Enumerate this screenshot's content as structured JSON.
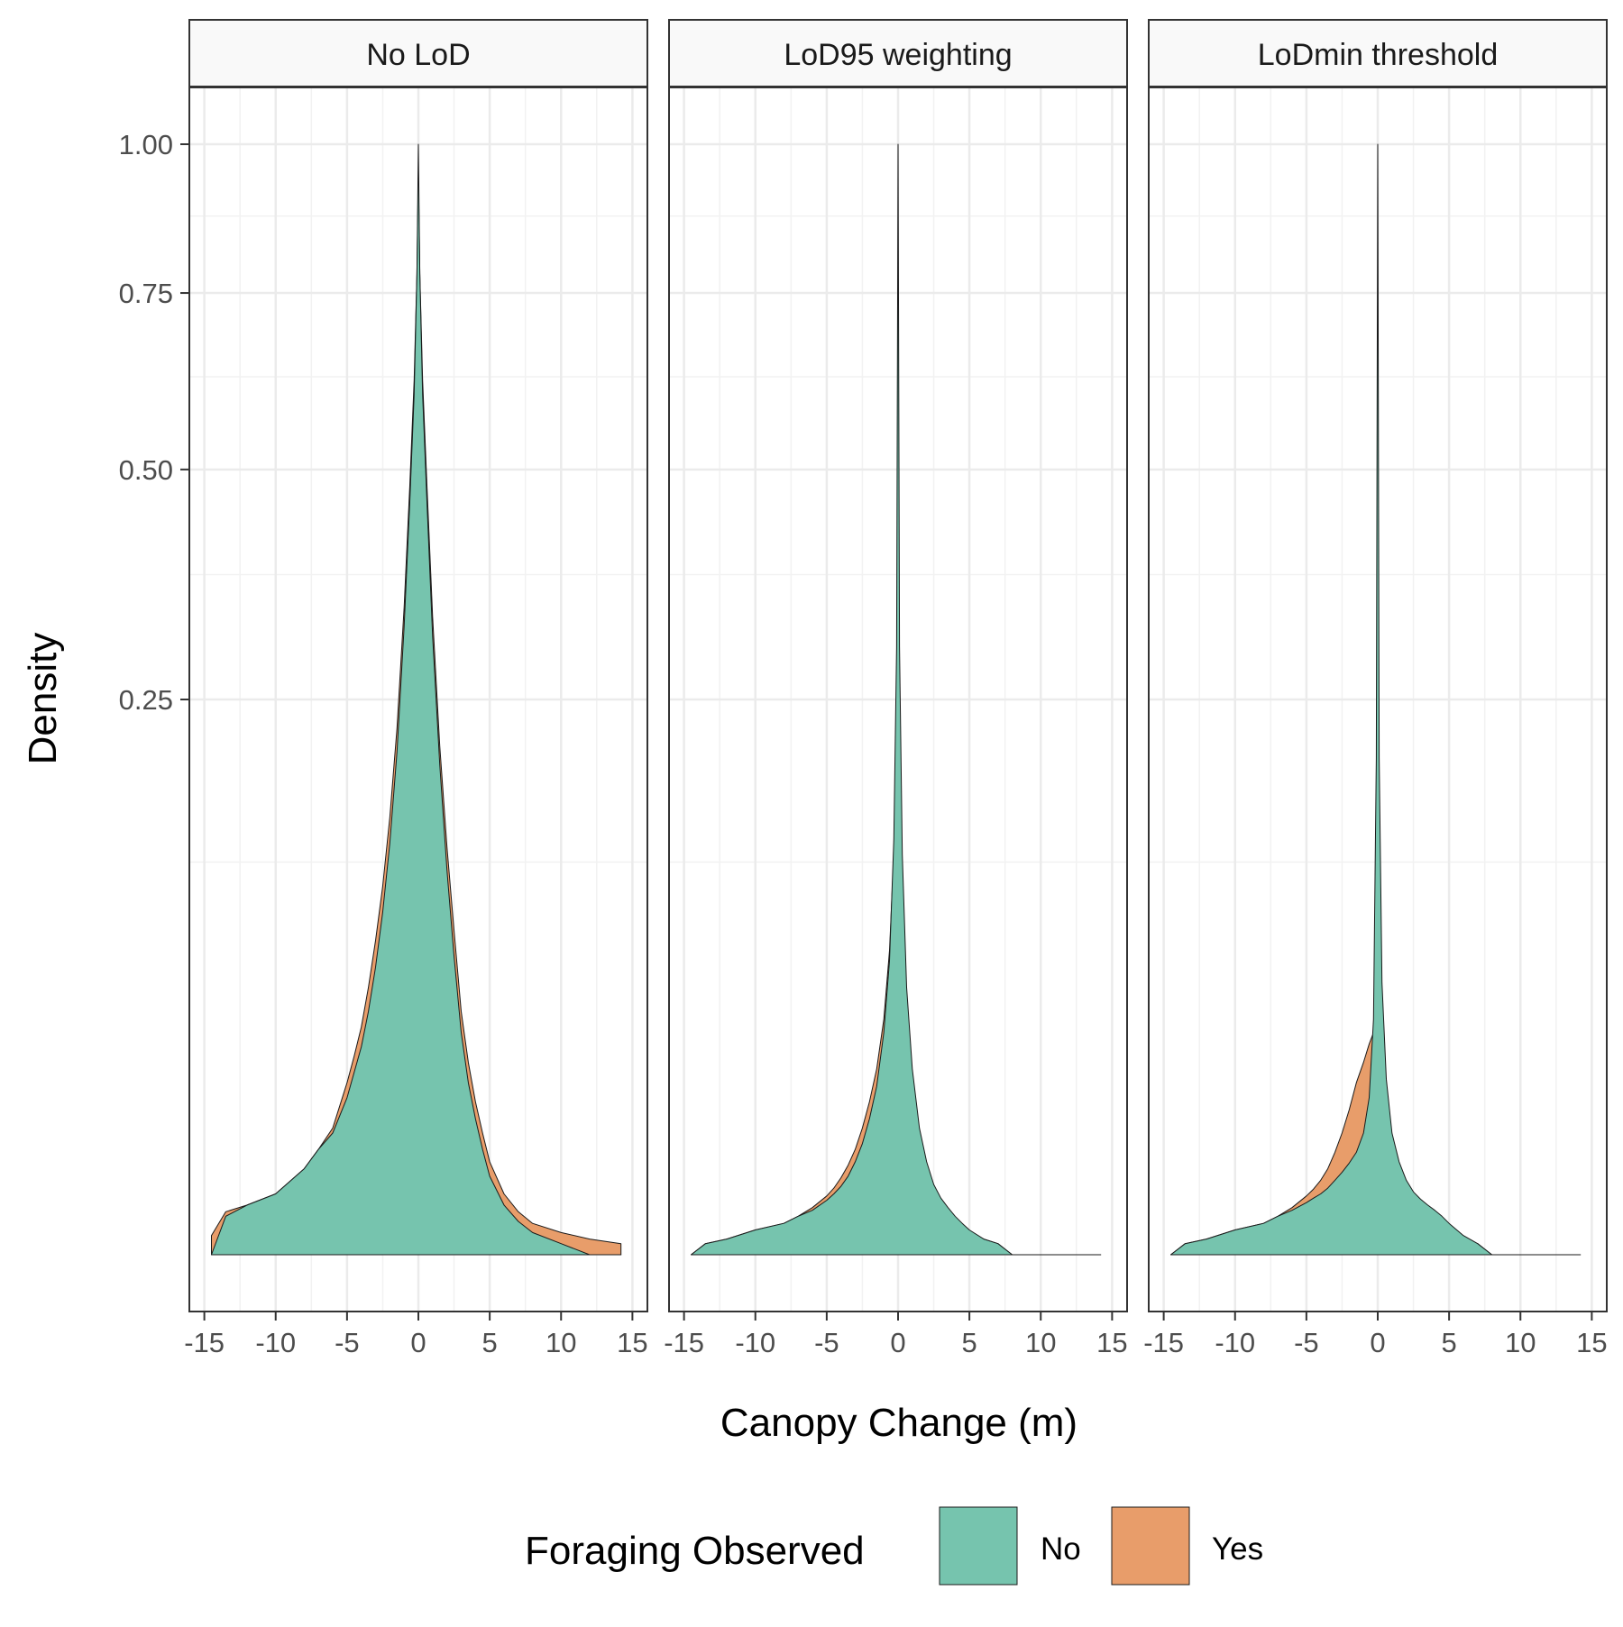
{
  "chart_data": {
    "type": "area",
    "xlabel": "Canopy Change (m)",
    "ylabel": "Density",
    "xlim": [
      -15,
      15
    ],
    "ylim": [
      0,
      1.05
    ],
    "y_scale": "sqrt",
    "x_ticks": [
      -15,
      -10,
      -5,
      0,
      5,
      10,
      15
    ],
    "x_tick_labels": [
      "-15",
      "-10",
      "-5",
      "0",
      "5",
      "10",
      "15"
    ],
    "y_ticks": [
      0.25,
      0.5,
      0.75,
      1.0
    ],
    "y_tick_labels": [
      "0.25",
      "0.50",
      "0.75",
      "1.00"
    ],
    "grid": true,
    "legend": {
      "title": "Foraging Observed",
      "position": "bottom",
      "items": [
        {
          "label": "No",
          "color": "#76c4ae"
        },
        {
          "label": "Yes",
          "color": "#e89d6a"
        }
      ]
    },
    "x": [
      -14.5,
      -13.5,
      -12,
      -10,
      -8,
      -7,
      -6,
      -5,
      -4.5,
      -4,
      -3.5,
      -3,
      -2.5,
      -2,
      -1.5,
      -1,
      -0.6,
      -0.3,
      -0.1,
      0,
      0.1,
      0.3,
      0.6,
      1,
      1.5,
      2,
      2.5,
      3,
      3.5,
      4,
      4.5,
      5,
      6,
      7,
      8,
      10,
      12,
      14.2
    ],
    "panels": [
      {
        "strip": "No LoD",
        "series": [
          {
            "name": "Yes",
            "color": "#e89d6a",
            "values": [
              0.0003,
              0.0015,
              0.002,
              0.003,
              0.006,
              0.009,
              0.013,
              0.024,
              0.032,
              0.042,
              0.058,
              0.08,
              0.11,
              0.155,
              0.225,
              0.34,
              0.48,
              0.62,
              0.78,
              0.95,
              0.78,
              0.62,
              0.48,
              0.33,
              0.21,
              0.135,
              0.085,
              0.048,
              0.03,
              0.019,
              0.012,
              0.007,
              0.003,
              0.0015,
              0.0008,
              0.0004,
              0.0002,
              0.0001
            ]
          },
          {
            "name": "No",
            "color": "#76c4ae",
            "values": [
              0.0,
              0.0012,
              0.002,
              0.003,
              0.006,
              0.009,
              0.012,
              0.02,
              0.027,
              0.035,
              0.048,
              0.067,
              0.095,
              0.137,
              0.205,
              0.32,
              0.46,
              0.6,
              0.78,
              1.0,
              0.78,
              0.6,
              0.46,
              0.31,
              0.195,
              0.12,
              0.072,
              0.04,
              0.024,
              0.015,
              0.009,
              0.005,
              0.002,
              0.0009,
              0.0004,
              0.0001,
              0.0,
              0.0
            ]
          }
        ]
      },
      {
        "strip": "LoD95 weighting",
        "series": [
          {
            "name": "Yes",
            "color": "#e89d6a",
            "values": [
              0.0,
              0.0001,
              0.0002,
              0.0005,
              0.0008,
              0.0012,
              0.0018,
              0.0028,
              0.0036,
              0.0048,
              0.0065,
              0.009,
              0.013,
              0.019,
              0.028,
              0.045,
              0.075,
              0.13,
              0.25,
              0.45,
              0.25,
              0.11,
              0.05,
              0.024,
              0.011,
              0.006,
              0.0035,
              0.0022,
              0.0015,
              0.001,
              0.0007,
              0.0004,
              0.0002,
              0.0001,
              0.0,
              0.0,
              0.0,
              0.0
            ]
          },
          {
            "name": "No",
            "color": "#76c4ae",
            "values": [
              0.0,
              0.0001,
              0.0002,
              0.0005,
              0.0008,
              0.0012,
              0.0016,
              0.0024,
              0.003,
              0.0038,
              0.005,
              0.007,
              0.01,
              0.015,
              0.023,
              0.04,
              0.07,
              0.14,
              0.3,
              1.0,
              0.3,
              0.13,
              0.058,
              0.028,
              0.013,
              0.007,
              0.004,
              0.0026,
              0.0018,
              0.0012,
              0.0008,
              0.0005,
              0.0002,
              0.0001,
              0.0,
              0.0,
              0.0,
              0.0
            ]
          }
        ]
      },
      {
        "strip": "LoDmin threshold",
        "series": [
          {
            "name": "Yes",
            "color": "#e89d6a",
            "values": [
              0.0,
              0.0001,
              0.0002,
              0.0005,
              0.0008,
              0.0012,
              0.0018,
              0.0028,
              0.0035,
              0.0045,
              0.006,
              0.0085,
              0.012,
              0.017,
              0.024,
              0.03,
              0.036,
              0.04,
              0.045,
              0.05,
              0.03,
              0.012,
              0.006,
              0.0035,
              0.0025,
              0.002,
              0.0015,
              0.0012,
              0.001,
              0.0008,
              0.0006,
              0.0004,
              0.0002,
              0.0001,
              0.0,
              0.0,
              0.0,
              0.0
            ]
          },
          {
            "name": "No",
            "color": "#76c4ae",
            "values": [
              0.0,
              0.0001,
              0.0002,
              0.0005,
              0.0008,
              0.0012,
              0.0016,
              0.0022,
              0.0026,
              0.003,
              0.0036,
              0.0045,
              0.0055,
              0.0068,
              0.0085,
              0.012,
              0.02,
              0.045,
              0.2,
              1.0,
              0.2,
              0.06,
              0.025,
              0.012,
              0.007,
              0.0045,
              0.0032,
              0.0025,
              0.002,
              0.0016,
              0.0012,
              0.0008,
              0.0003,
              0.0001,
              0.0,
              0.0,
              0.0,
              0.0
            ]
          }
        ]
      }
    ]
  }
}
